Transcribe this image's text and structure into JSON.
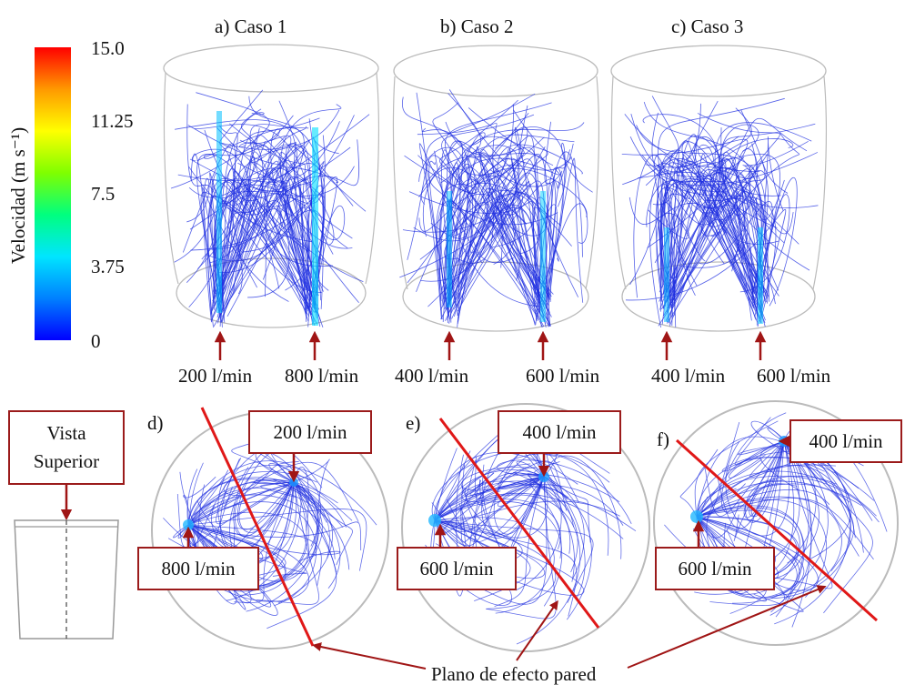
{
  "colorbar": {
    "title": "Velocidad (m s⁻¹)",
    "ticks": [
      "15.0",
      "11.25",
      "7.5",
      "3.75",
      "0"
    ],
    "colors": [
      "#0000ff",
      "#0080ff",
      "#00e5ff",
      "#00ff7f",
      "#7fff00",
      "#ffff00",
      "#ff9900",
      "#ff0000"
    ]
  },
  "panels_side": [
    {
      "label": "a) Caso 1",
      "flows": [
        "200 l/min",
        "800 l/min"
      ]
    },
    {
      "label": "b) Caso 2",
      "flows": [
        "400 l/min",
        "600 l/min"
      ]
    },
    {
      "label": "c) Caso 3",
      "flows": [
        "400 l/min",
        "600 l/min"
      ]
    }
  ],
  "panels_top": [
    {
      "label": "d)",
      "flow_a": "200 l/min",
      "flow_b": "800 l/min"
    },
    {
      "label": "e)",
      "flow_a": "400 l/min",
      "flow_b": "600 l/min"
    },
    {
      "label": "f)",
      "flow_a": "400 l/min",
      "flow_b": "600 l/min"
    }
  ],
  "vista": {
    "line1": "Vista",
    "line2": "Superior"
  },
  "wall_plane_label": "Plano de efecto pared",
  "colors": {
    "streamline": "#1f2fe0",
    "arrow": "#a01515",
    "wall_line": "#e01818",
    "box_border": "#9b1b1b"
  }
}
